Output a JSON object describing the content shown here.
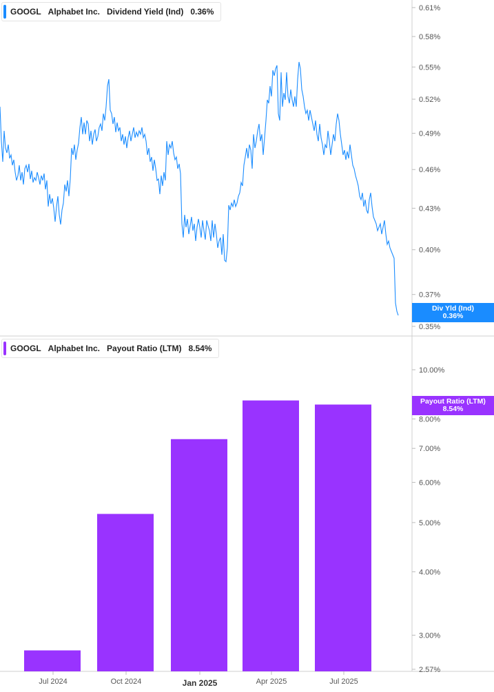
{
  "panels": {
    "top": {
      "legend": {
        "ticker": "GOOGL",
        "company": "Alphabet Inc.",
        "metric": "Dividend Yield (Ind)",
        "value": "0.36%"
      },
      "tag": {
        "label": "Div Yld (Ind)",
        "value": "0.36%"
      },
      "color": "#1a8cff",
      "y_ticks": [
        "0.61%",
        "0.58%",
        "0.55%",
        "0.52%",
        "0.49%",
        "0.46%",
        "0.43%",
        "0.40%",
        "0.37%",
        "0.35%"
      ]
    },
    "bottom": {
      "legend": {
        "ticker": "GOOGL",
        "company": "Alphabet Inc.",
        "metric": "Payout Ratio (LTM)",
        "value": "8.54%"
      },
      "tag": {
        "label": "Payout Ratio (LTM)",
        "value": "8.54%"
      },
      "color": "#9933ff",
      "y_ticks": [
        "10.00%",
        "8.00%",
        "7.00%",
        "6.00%",
        "5.00%",
        "4.00%",
        "3.00%",
        "2.57%"
      ]
    }
  },
  "x_axis": {
    "labels": [
      "Jul 2024",
      "Oct 2024",
      "Jan 2025",
      "Apr 2025",
      "Jul 2025"
    ],
    "bold": "Jan 2025"
  },
  "chart_data": [
    {
      "type": "line",
      "title": "GOOGL Alphabet Inc. Dividend Yield (Ind)",
      "ylim": [
        0.35,
        0.61
      ],
      "y_scale": "log",
      "x": [
        "2024-06",
        "2024-07",
        "2024-08",
        "2024-09",
        "2024-10",
        "2024-11",
        "2024-12",
        "2025-01",
        "2025-02",
        "2025-03",
        "2025-04",
        "2025-05",
        "2025-06",
        "2025-07",
        "2025-08",
        "2025-09"
      ],
      "series": [
        {
          "name": "Div Yld (Ind)",
          "values": [
            0.52,
            0.47,
            0.44,
            0.49,
            0.53,
            0.5,
            0.47,
            0.41,
            0.41,
            0.44,
            0.48,
            0.55,
            0.51,
            0.48,
            0.43,
            0.36
          ]
        }
      ]
    },
    {
      "type": "bar",
      "title": "GOOGL Alphabet Inc. Payout Ratio (LTM)",
      "y_scale": "log",
      "ylim": [
        2.57,
        10.0
      ],
      "categories": [
        "Jul 2024",
        "Oct 2024",
        "Jan 2025",
        "Apr 2025",
        "Jul 2025"
      ],
      "series": [
        {
          "name": "Payout Ratio (LTM)",
          "values": [
            2.8,
            5.2,
            7.3,
            8.7,
            8.54
          ]
        }
      ]
    }
  ]
}
